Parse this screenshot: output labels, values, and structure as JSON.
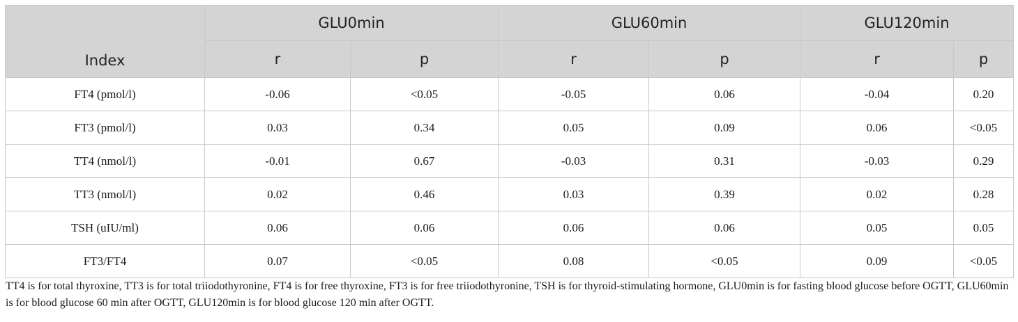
{
  "table": {
    "index_header": "Index",
    "groups": [
      "GLU0min",
      "GLU60min",
      "GLU120min"
    ],
    "sub_headers": [
      "r",
      "p",
      "r",
      "p",
      "r",
      "p"
    ],
    "rows": [
      {
        "label": "FT4 (pmol/l)",
        "values": [
          "-0.06",
          "<0.05",
          "-0.05",
          "0.06",
          "-0.04",
          "0.20"
        ]
      },
      {
        "label": "FT3 (pmol/l)",
        "values": [
          "0.03",
          "0.34",
          "0.05",
          "0.09",
          "0.06",
          "<0.05"
        ]
      },
      {
        "label": "TT4 (nmol/l)",
        "values": [
          "-0.01",
          "0.67",
          "-0.03",
          "0.31",
          "-0.03",
          "0.29"
        ]
      },
      {
        "label": "TT3 (nmol/l)",
        "values": [
          "0.02",
          "0.46",
          "0.03",
          "0.39",
          "0.02",
          "0.28"
        ]
      },
      {
        "label": "TSH (uIU/ml)",
        "values": [
          "0.06",
          "0.06",
          "0.06",
          "0.06",
          "0.05",
          "0.05"
        ]
      },
      {
        "label": "FT3/FT4",
        "values": [
          "0.07",
          "<0.05",
          "0.08",
          "<0.05",
          "0.09",
          "<0.05"
        ]
      }
    ]
  },
  "footnote": "TT4 is for total thyroxine, TT3 is for total triiodothyronine, FT4 is for free thyroxine, FT3 is for free triiodothyronine, TSH is for thyroid-stimulating hormone, GLU0min is for fasting blood glucose before OGTT, GLU60min is for blood glucose 60 min after OGTT, GLU120min is for blood glucose 120 min after OGTT."
}
